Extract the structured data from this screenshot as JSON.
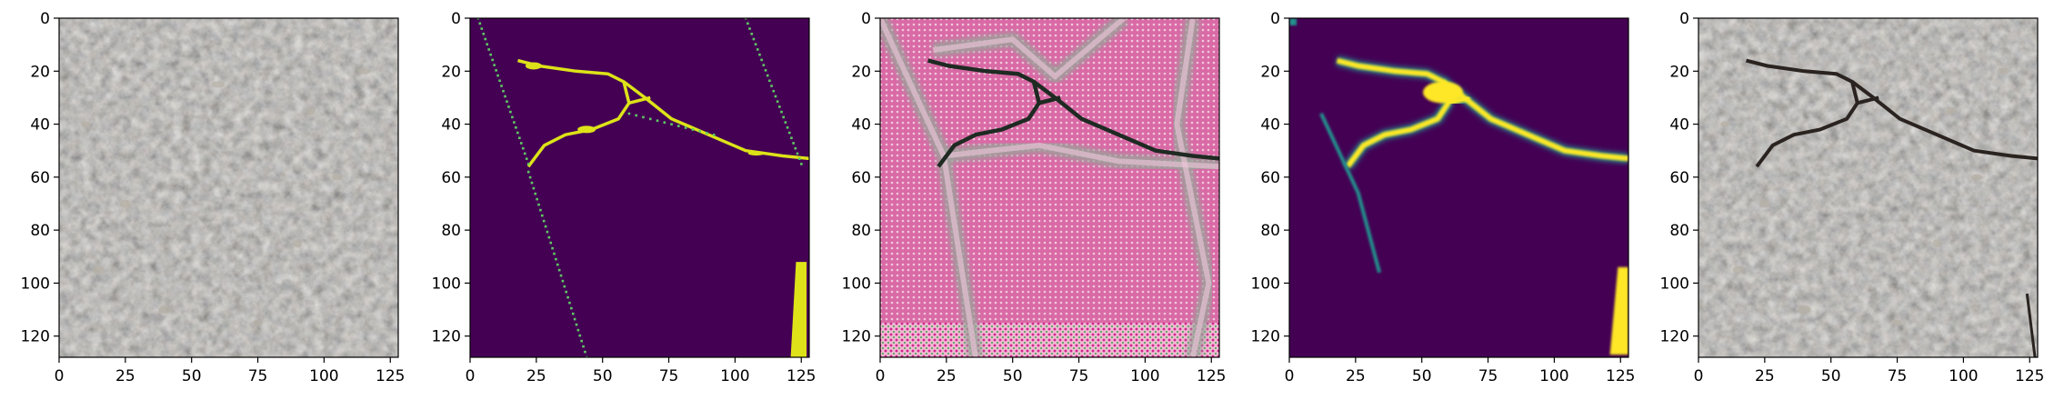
{
  "figure": {
    "panels": [
      {
        "kind": "pavement-photo",
        "description_icon": "asphalt-texture-image",
        "colors": {
          "base": "#8f8d86",
          "dark": "#5c5d5e",
          "light": "#b6b0a5",
          "accent": "#a08f78"
        }
      },
      {
        "kind": "crack-mask-binary",
        "description_icon": "binary-mask-image",
        "colors": {
          "background": "#440154",
          "crack": "#dde318",
          "edge": "#5ec962"
        }
      },
      {
        "kind": "crack-reconstruction",
        "description_icon": "pink-reconstruction-image",
        "colors": {
          "base": "#d96aa6",
          "light": "#f2c7dc",
          "gray": "#9aa39a",
          "dark": "#1e2a22"
        }
      },
      {
        "kind": "crack-probability-map",
        "description_icon": "probability-map-image",
        "colors": {
          "background": "#440154",
          "crack": "#fde725",
          "mid": "#21918c"
        }
      },
      {
        "kind": "pavement-overlay",
        "description_icon": "overlay-image",
        "colors": {
          "base": "#8f8d86",
          "dark": "#5c5d5e",
          "light": "#b6b0a5",
          "crack": "#2a2320"
        }
      }
    ],
    "axes": {
      "x_ticks": [
        "0",
        "25",
        "50",
        "75",
        "100",
        "125"
      ],
      "y_ticks": [
        "0",
        "20",
        "40",
        "60",
        "80",
        "100",
        "120"
      ]
    }
  }
}
